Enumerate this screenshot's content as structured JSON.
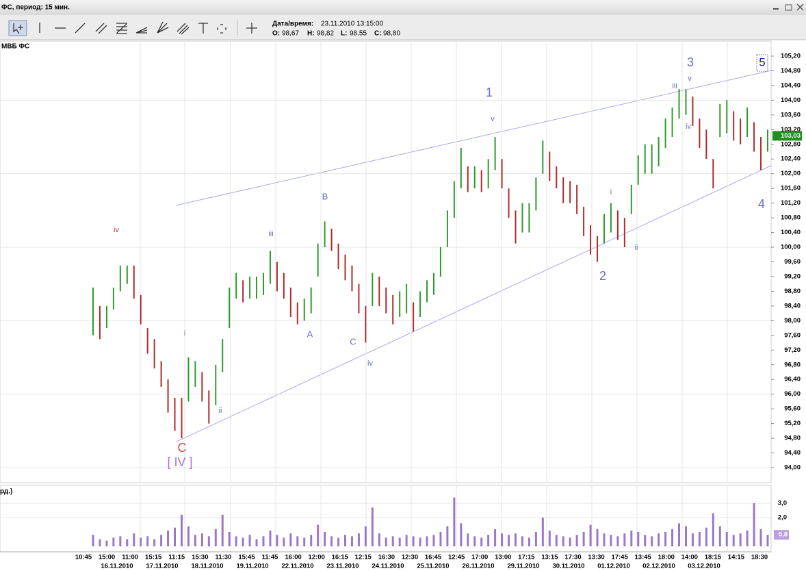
{
  "header": {
    "title": "ФС, период: 15 мин.",
    "datetime_label": "Дата/время:",
    "datetime": "23.11.2010 13:15:00",
    "open_label": "O:",
    "open": "98,67",
    "high_label": "H:",
    "high": "98,82",
    "low_label": "L:",
    "low": "98,55",
    "close_label": "C:",
    "close": "98,80"
  },
  "chart_data": {
    "type": "ohlc",
    "title": "МВБ ФС",
    "up_color": "#2e9a2e",
    "down_color": "#b02a2a",
    "highs": [
      98.9,
      98.4,
      98.4,
      98.9,
      99.5,
      99.5,
      99.5,
      98.7,
      97.8,
      97.5,
      96.9,
      96.4,
      95.9,
      95.9,
      97.0,
      96.9,
      96.6,
      96.1,
      96.8,
      97.5,
      98.9,
      99.3,
      99.1,
      99.2,
      99.2,
      99.3,
      99.9,
      99.6,
      99.3,
      98.9,
      98.5,
      98.6,
      98.9,
      100.1,
      100.7,
      100.5,
      100.1,
      99.8,
      99.5,
      99.0,
      98.4,
      99.3,
      99.2,
      98.9,
      98.7,
      98.8,
      99.0,
      98.5,
      98.8,
      99.1,
      99.3,
      100.0,
      101.0,
      101.8,
      102.7,
      102.2,
      102.2,
      102.1,
      102.4,
      103.0,
      102.4,
      101.6,
      101.0,
      101.2,
      101.2,
      101.9,
      102.9,
      102.6,
      102.2,
      101.9,
      101.8,
      101.7,
      101.1,
      100.6,
      100.3,
      100.9,
      101.2,
      101.0,
      100.8,
      101.7,
      102.5,
      102.8,
      102.8,
      103.0,
      103.5,
      103.8,
      104.3,
      104.3,
      104.1,
      103.5,
      103.2,
      102.4,
      103.9,
      104.0,
      103.7,
      103.5,
      103.8,
      103.4,
      103.0,
      103.2
    ],
    "lows": [
      97.6,
      97.5,
      97.8,
      98.3,
      98.8,
      99.0,
      98.6,
      97.9,
      97.1,
      96.7,
      96.2,
      95.5,
      95.0,
      94.8,
      95.8,
      96.2,
      95.8,
      95.2,
      95.7,
      96.6,
      97.8,
      98.6,
      98.5,
      98.6,
      98.6,
      98.7,
      99.0,
      98.8,
      98.6,
      98.1,
      97.9,
      98.0,
      98.2,
      99.2,
      100.0,
      99.9,
      99.4,
      99.1,
      98.8,
      98.2,
      97.4,
      98.4,
      98.4,
      98.2,
      97.9,
      98.1,
      98.2,
      97.7,
      98.1,
      98.5,
      98.7,
      99.2,
      100.0,
      100.8,
      101.6,
      101.5,
      101.6,
      101.5,
      101.6,
      102.1,
      101.6,
      100.8,
      100.1,
      100.4,
      100.4,
      101.0,
      102.0,
      101.8,
      101.6,
      101.2,
      101.2,
      100.9,
      100.3,
      99.8,
      99.6,
      100.1,
      100.4,
      100.2,
      100.0,
      100.9,
      101.7,
      102.0,
      102.0,
      102.2,
      102.7,
      103.0,
      103.5,
      103.6,
      103.3,
      102.7,
      102.4,
      101.6,
      103.0,
      103.1,
      102.9,
      102.8,
      103.0,
      102.6,
      102.1,
      102.6
    ],
    "ylim": [
      93.6,
      105.6
    ],
    "yticks": [
      {
        "value": 94.0,
        "label": "94,00"
      },
      {
        "value": 94.4,
        "label": "94,40"
      },
      {
        "value": 94.8,
        "label": "94,80"
      },
      {
        "value": 95.2,
        "label": "95,20"
      },
      {
        "value": 95.6,
        "label": "95,60"
      },
      {
        "value": 96.0,
        "label": "96,00"
      },
      {
        "value": 96.4,
        "label": "96,40"
      },
      {
        "value": 96.8,
        "label": "96,80"
      },
      {
        "value": 97.2,
        "label": "97,20"
      },
      {
        "value": 97.6,
        "label": "97,60"
      },
      {
        "value": 98.0,
        "label": "98,00"
      },
      {
        "value": 98.4,
        "label": "98,40"
      },
      {
        "value": 98.8,
        "label": "98,80"
      },
      {
        "value": 99.2,
        "label": "99,20"
      },
      {
        "value": 99.6,
        "label": "99,60"
      },
      {
        "value": 100.0,
        "label": "100,00"
      },
      {
        "value": 100.4,
        "label": "100,40"
      },
      {
        "value": 100.8,
        "label": "100,80"
      },
      {
        "value": 101.2,
        "label": "101,20"
      },
      {
        "value": 101.6,
        "label": "101,60"
      },
      {
        "value": 102.0,
        "label": "102,00"
      },
      {
        "value": 102.4,
        "label": "102,40"
      },
      {
        "value": 102.8,
        "label": "102,80"
      },
      {
        "value": 103.2,
        "label": "103,20"
      },
      {
        "value": 103.6,
        "label": "103,60"
      },
      {
        "value": 104.0,
        "label": "104,00"
      },
      {
        "value": 104.4,
        "label": "104,40"
      },
      {
        "value": 104.8,
        "label": "104,80"
      },
      {
        "value": 105.2,
        "label": "105,20"
      }
    ],
    "last_price": {
      "value": 103.03,
      "label": "103,03"
    },
    "last_color": "#1f8f1f",
    "x_labels": [
      "10:45",
      "15:00",
      "11:00",
      "15:15",
      "11:15",
      "15:30",
      "11:30",
      "15:45",
      "11:45",
      "16:00",
      "12:00",
      "16:15",
      "12:15",
      "16:30",
      "12:30",
      "16:45",
      "12:45",
      "17:00",
      "13:00",
      "17:15",
      "13:15",
      "17:30",
      "13:30",
      "17:45",
      "13:45",
      "18:00",
      "14:00",
      "18:15",
      "14:15",
      "18:30"
    ],
    "date_labels": [
      "16.11.2010",
      "17.11.2010",
      "18.11.2010",
      "19.11.2010",
      "22.11.2010",
      "23.11.2010",
      "24.11.2010",
      "25.11.2010",
      "26.11.2010",
      "29.11.2010",
      "30.11.2010",
      "01.12.2010",
      "02.12.2010",
      "03.12.2010"
    ],
    "annotations": [
      {
        "text": "iv",
        "color": "#c84040"
      },
      {
        "text": "i",
        "color": "#6a6ad0"
      },
      {
        "text": "ii",
        "color": "#6a6ad0"
      },
      {
        "text": "C",
        "color": "#d04848"
      },
      {
        "text": "[ IV ]",
        "color": "#b070d0"
      },
      {
        "text": "iii",
        "color": "#6a6ad0"
      },
      {
        "text": "B",
        "color": "#6a6ad0"
      },
      {
        "text": "A",
        "color": "#6a6ad0"
      },
      {
        "text": "C",
        "color": "#6a6ad0"
      },
      {
        "text": "iv",
        "color": "#6a6ad0"
      },
      {
        "text": "1",
        "color": "#6a6ad0"
      },
      {
        "text": "v",
        "color": "#6a6ad0"
      },
      {
        "text": "2",
        "color": "#6a6ad0"
      },
      {
        "text": "i",
        "color": "#6a6ad0"
      },
      {
        "text": "ii",
        "color": "#6a6ad0"
      },
      {
        "text": "3",
        "color": "#6a6ad0"
      },
      {
        "text": "iii",
        "color": "#6a6ad0"
      },
      {
        "text": "v",
        "color": "#6a6ad0"
      },
      {
        "text": "iv",
        "color": "#6a6ad0"
      },
      {
        "text": "4",
        "color": "#6a6ad0"
      },
      {
        "text": "5",
        "color": "#1a1aa0"
      }
    ],
    "volume": {
      "title": "рд.)",
      "color": "#9a78c8",
      "values": [
        0.8,
        0.5,
        0.4,
        0.6,
        0.7,
        0.5,
        0.9,
        0.6,
        0.7,
        0.5,
        0.8,
        1.1,
        1.3,
        2.2,
        1.4,
        0.8,
        0.9,
        0.7,
        1.2,
        2.2,
        1.0,
        0.7,
        0.6,
        0.8,
        0.5,
        0.7,
        1.1,
        0.8,
        0.6,
        0.9,
        0.7,
        0.6,
        0.8,
        1.5,
        1.0,
        0.7,
        0.6,
        0.8,
        0.7,
        0.9,
        1.4,
        2.7,
        0.9,
        0.6,
        0.7,
        0.6,
        0.8,
        0.7,
        0.6,
        0.7,
        0.8,
        1.0,
        1.4,
        3.4,
        1.6,
        0.9,
        0.7,
        0.6,
        0.8,
        1.2,
        0.9,
        0.8,
        0.9,
        0.7,
        0.6,
        1.0,
        2.0,
        1.1,
        0.8,
        0.7,
        0.6,
        0.8,
        1.0,
        1.5,
        1.2,
        0.9,
        0.8,
        0.7,
        0.9,
        1.1,
        1.0,
        0.8,
        0.7,
        0.9,
        1.0,
        1.2,
        1.6,
        1.4,
        0.9,
        1.0,
        1.3,
        2.3,
        1.4,
        1.0,
        0.8,
        0.9,
        1.1,
        3.0,
        1.2,
        0.8
      ],
      "ylim": [
        0,
        4.2
      ],
      "yticks": [
        {
          "value": 2,
          "label": "2,0"
        },
        {
          "value": 3,
          "label": "3,0"
        }
      ],
      "last": {
        "value": 0.8,
        "label": "0,8"
      },
      "last_color": "#b9a0e0"
    }
  }
}
